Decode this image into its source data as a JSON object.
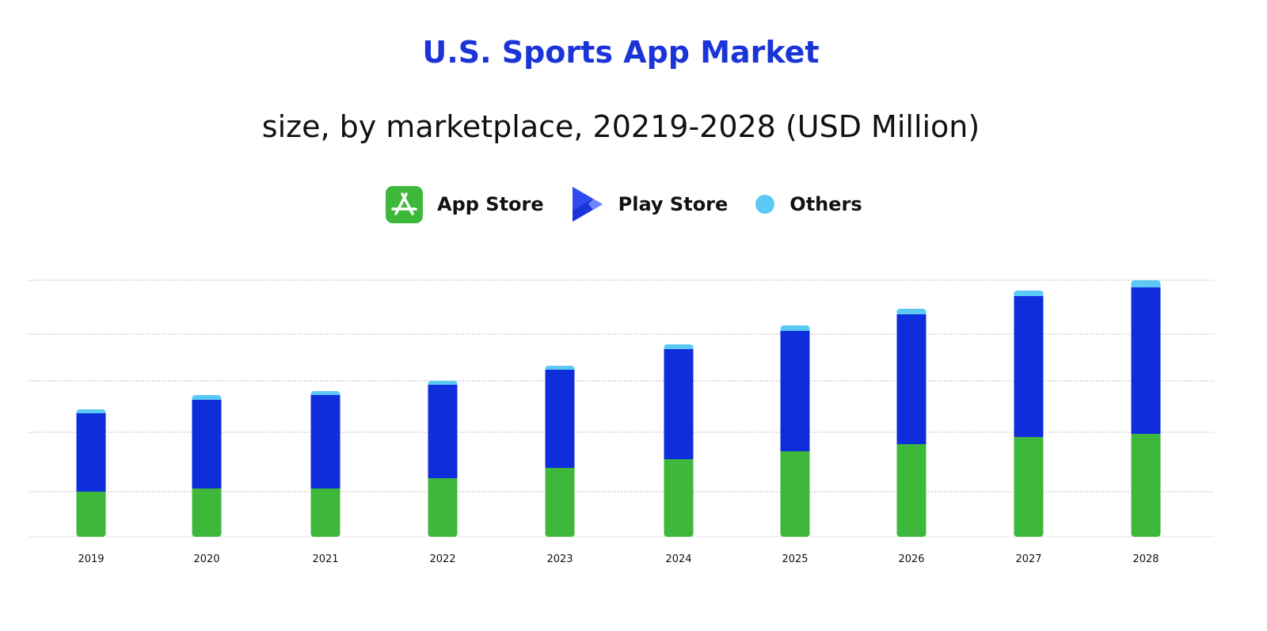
{
  "chart_data": {
    "type": "bar",
    "stacked": true,
    "title": "U.S. Sports App Market",
    "subtitle": "size, by marketplace, 20219-2028 (USD Million)",
    "xlabel": "",
    "ylabel": "",
    "categories": [
      "2019",
      "2020",
      "2021",
      "2022",
      "2023",
      "2024",
      "2025",
      "2026",
      "2027",
      "2028"
    ],
    "series": [
      {
        "name": "App Store",
        "color": "#3db83a",
        "values": [
          57,
          61,
          61,
          74,
          87,
          98,
          108,
          117,
          126,
          130
        ]
      },
      {
        "name": "Play Store",
        "color": "#102ddb",
        "values": [
          99,
          112,
          118,
          118,
          124,
          139,
          152,
          164,
          178,
          185
        ]
      },
      {
        "name": "Others",
        "color": "#5bc8f5",
        "values": [
          5,
          6,
          5,
          5,
          5,
          6,
          7,
          7,
          7,
          9
        ]
      }
    ],
    "ylim": [
      0,
      324
    ],
    "grid": true,
    "y_tick_labels_shown": false,
    "legend_position": "top",
    "legend_icons": [
      "app-store-icon",
      "play-store-icon",
      "circle-icon"
    ]
  }
}
